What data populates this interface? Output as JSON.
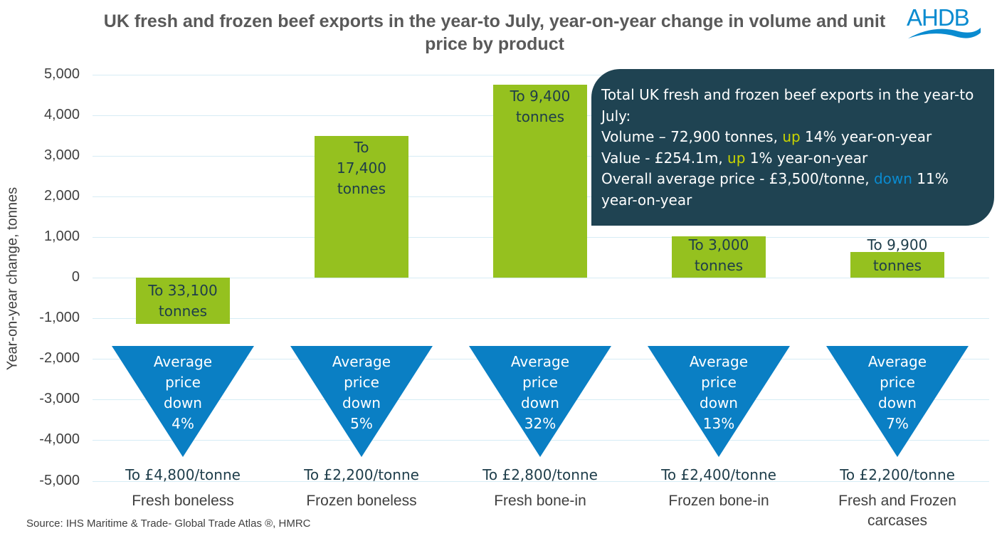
{
  "chart_data": {
    "type": "bar",
    "title": "UK fresh and frozen beef exports in the year-to July, year-on-year change in volume and unit price by product",
    "ylabel": "Year-on-year change, tonnes",
    "ylim": [
      -5000,
      5000
    ],
    "yticks": [
      "5,000",
      "4,000",
      "3,000",
      "2,000",
      "1,000",
      "0",
      "-1,000",
      "-2,000",
      "-3,000",
      "-4,000",
      "-5,000"
    ],
    "categories": [
      "Fresh boneless",
      "Frozen boneless",
      "Fresh bone-in",
      "Frozen bone-in",
      "Fresh and Frozen carcases"
    ],
    "series": [
      {
        "name": "Volume change (tonnes)",
        "values": [
          -1130,
          3480,
          4750,
          1020,
          630
        ]
      }
    ],
    "bar_labels": [
      [
        "To 33,100",
        "tonnes"
      ],
      [
        "To",
        "17,400",
        "tonnes"
      ],
      [
        "To 9,400",
        "tonnes"
      ],
      [
        "To 3,000",
        "tonnes"
      ],
      [
        "To 9,900",
        "tonnes"
      ]
    ],
    "price_changes": [
      [
        "Average",
        "price",
        "down",
        "4%"
      ],
      [
        "Average",
        "price",
        "down",
        "5%"
      ],
      [
        "Average",
        "price",
        "down",
        "32%"
      ],
      [
        "Average",
        "price",
        "down",
        "13%"
      ],
      [
        "Average",
        "price",
        "down",
        "7%"
      ]
    ],
    "price_labels": [
      "To £4,800/tonne",
      "To £2,200/tonne",
      "To £2,800/tonne",
      "To £2,400/tonne",
      "To £2,200/tonne"
    ],
    "grid": true
  },
  "logo": "AHDB",
  "source": "Source: IHS Maritime & Trade- Global Trade Atlas ®, HMRC",
  "callout": {
    "line1": "Total UK fresh and frozen beef exports in the year-to July:",
    "vol_a": "Volume – 72,900 tonnes, ",
    "vol_up": "up",
    "vol_b": " 14% year-on-year",
    "val_a": "Value - £254.1m, ",
    "val_up": "up",
    "val_b": " 1% year-on-year",
    "price_a": "Overall average price - £3,500/tonne, ",
    "price_down": "down",
    "price_b": " 11% year-on-year"
  },
  "colors": {
    "bar": "#95c11f",
    "triangle": "#0a7fc4",
    "callout": "#1f4352",
    "up": "#c8d400",
    "down": "#0a8bd0"
  }
}
